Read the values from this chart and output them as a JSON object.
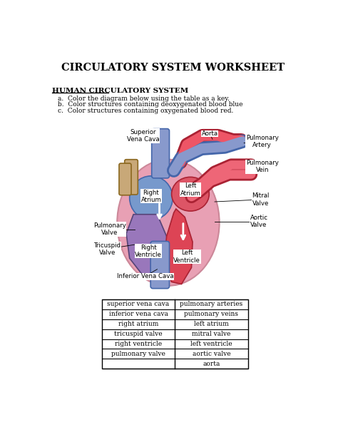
{
  "title": "CIRCULATORY SYSTEM WORKSHEET",
  "subtitle": "HUMAN CIRCULATORY SYSTEM",
  "instructions": [
    "a.  Color the diagram below using the table as a key.",
    "b.  Color structures containing deoxygenated blood blue",
    "c.  Color structures containing oxygenated blood red."
  ],
  "table_left": [
    "superior vena cava",
    "inferior vena cava",
    "right atrium",
    "tricuspid valve",
    "right ventricle",
    "pulmonary valve",
    ""
  ],
  "table_right": [
    "pulmonary arteries",
    "pulmonary veins",
    "left atrium",
    "mitral valve",
    "left ventricle",
    "aortic valve",
    "aorta"
  ],
  "bg_color": "#ffffff",
  "heart_pink": "#e8a0b4",
  "heart_red": "#cc3344",
  "heart_blue": "#7799cc",
  "heart_purple": "#aa77bb",
  "vessel_blue": "#8899cc",
  "vessel_red": "#dd5566",
  "vessel_tan": "#c8a878",
  "outline_dark": "#333333"
}
